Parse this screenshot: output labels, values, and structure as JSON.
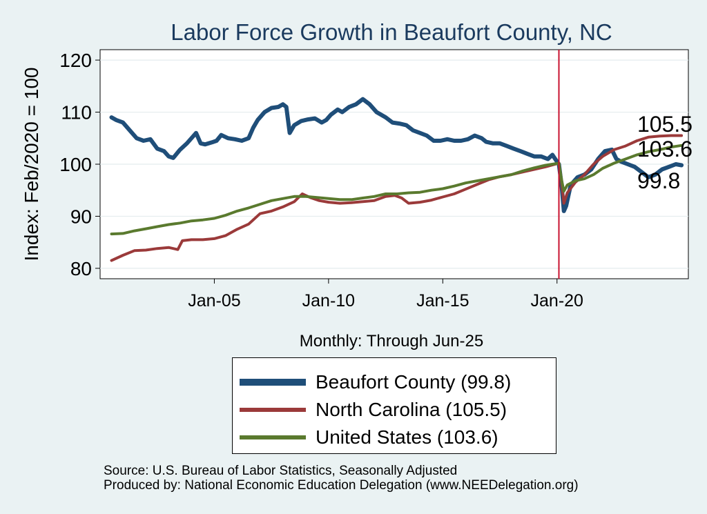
{
  "chart_data": {
    "type": "line",
    "title": "Labor Force Growth in Beaufort  County, NC",
    "ylabel": "Index: Feb/2020 = 100",
    "xlabel": "Monthly: Through Jun-25",
    "ylim": [
      78,
      122
    ],
    "xlim": [
      2000.0,
      2025.75
    ],
    "yticks": [
      80,
      90,
      100,
      110,
      120
    ],
    "xticks": [
      {
        "value": 2005.0,
        "label": "Jan-05"
      },
      {
        "value": 2010.0,
        "label": "Jan-10"
      },
      {
        "value": 2015.0,
        "label": "Jan-15"
      },
      {
        "value": 2020.0,
        "label": "Jan-20"
      }
    ],
    "reference_line": {
      "x": 2020.083,
      "color": "#c8102e"
    },
    "grid": true,
    "legend_position": "bottom",
    "series": [
      {
        "name": "Beaufort  County (99.8)",
        "color": "#1f4e79",
        "end_label": "99.8",
        "points": [
          [
            2000.5,
            109
          ],
          [
            2000.7,
            108.5
          ],
          [
            2001.0,
            108
          ],
          [
            2001.3,
            106.5
          ],
          [
            2001.6,
            105
          ],
          [
            2001.9,
            104.5
          ],
          [
            2002.2,
            104.8
          ],
          [
            2002.5,
            103
          ],
          [
            2002.8,
            102.5
          ],
          [
            2003.0,
            101.5
          ],
          [
            2003.2,
            101.2
          ],
          [
            2003.5,
            102.8
          ],
          [
            2003.8,
            104
          ],
          [
            2004.0,
            105
          ],
          [
            2004.2,
            106
          ],
          [
            2004.4,
            104
          ],
          [
            2004.6,
            103.8
          ],
          [
            2004.9,
            104.2
          ],
          [
            2005.1,
            104.5
          ],
          [
            2005.3,
            105.6
          ],
          [
            2005.6,
            105
          ],
          [
            2005.9,
            104.8
          ],
          [
            2006.2,
            104.5
          ],
          [
            2006.5,
            105
          ],
          [
            2006.7,
            107
          ],
          [
            2006.9,
            108.5
          ],
          [
            2007.2,
            110
          ],
          [
            2007.5,
            110.8
          ],
          [
            2007.8,
            111
          ],
          [
            2008.0,
            111.5
          ],
          [
            2008.15,
            111
          ],
          [
            2008.3,
            106
          ],
          [
            2008.5,
            107.5
          ],
          [
            2008.8,
            108.3
          ],
          [
            2009.1,
            108.6
          ],
          [
            2009.4,
            108.8
          ],
          [
            2009.7,
            108
          ],
          [
            2009.9,
            108.5
          ],
          [
            2010.1,
            109.5
          ],
          [
            2010.4,
            110.5
          ],
          [
            2010.6,
            110
          ],
          [
            2010.9,
            111
          ],
          [
            2011.2,
            111.5
          ],
          [
            2011.5,
            112.5
          ],
          [
            2011.8,
            111.5
          ],
          [
            2012.1,
            110
          ],
          [
            2012.5,
            109
          ],
          [
            2012.8,
            108
          ],
          [
            2013.1,
            107.8
          ],
          [
            2013.4,
            107.5
          ],
          [
            2013.7,
            106.5
          ],
          [
            2014.0,
            106
          ],
          [
            2014.3,
            105.5
          ],
          [
            2014.6,
            104.5
          ],
          [
            2014.9,
            104.5
          ],
          [
            2015.2,
            104.8
          ],
          [
            2015.5,
            104.5
          ],
          [
            2015.8,
            104.5
          ],
          [
            2016.1,
            104.8
          ],
          [
            2016.4,
            105.5
          ],
          [
            2016.7,
            105
          ],
          [
            2016.9,
            104.3
          ],
          [
            2017.2,
            104
          ],
          [
            2017.5,
            104
          ],
          [
            2017.8,
            103.5
          ],
          [
            2018.1,
            103
          ],
          [
            2018.4,
            102.5
          ],
          [
            2018.7,
            102
          ],
          [
            2019.0,
            101.5
          ],
          [
            2019.3,
            101.5
          ],
          [
            2019.6,
            101
          ],
          [
            2019.8,
            101.8
          ],
          [
            2020.0,
            100.5
          ],
          [
            2020.083,
            100
          ],
          [
            2020.2,
            96
          ],
          [
            2020.3,
            91
          ],
          [
            2020.4,
            92
          ],
          [
            2020.6,
            96
          ],
          [
            2020.9,
            97.5
          ],
          [
            2021.2,
            98
          ],
          [
            2021.5,
            99
          ],
          [
            2021.8,
            101
          ],
          [
            2022.1,
            102.5
          ],
          [
            2022.4,
            102.8
          ],
          [
            2022.6,
            101
          ],
          [
            2022.8,
            100.5
          ],
          [
            2023.1,
            100
          ],
          [
            2023.4,
            99.5
          ],
          [
            2023.7,
            98.5
          ],
          [
            2024.0,
            97.5
          ],
          [
            2024.3,
            98
          ],
          [
            2024.6,
            99
          ],
          [
            2024.9,
            99.5
          ],
          [
            2025.2,
            100
          ],
          [
            2025.45,
            99.8
          ]
        ]
      },
      {
        "name": "North Carolina (105.5)",
        "color": "#9b3a3a",
        "end_label": "105.5",
        "points": [
          [
            2000.5,
            81.5
          ],
          [
            2001.0,
            82.5
          ],
          [
            2001.5,
            83.4
          ],
          [
            2002.0,
            83.5
          ],
          [
            2002.5,
            83.8
          ],
          [
            2003.0,
            84
          ],
          [
            2003.4,
            83.6
          ],
          [
            2003.6,
            85.3
          ],
          [
            2004.0,
            85.5
          ],
          [
            2004.5,
            85.5
          ],
          [
            2005.0,
            85.7
          ],
          [
            2005.5,
            86.3
          ],
          [
            2006.0,
            87.5
          ],
          [
            2006.5,
            88.5
          ],
          [
            2007.0,
            90.5
          ],
          [
            2007.5,
            91
          ],
          [
            2008.0,
            91.8
          ],
          [
            2008.5,
            92.8
          ],
          [
            2008.85,
            94.3
          ],
          [
            2009.2,
            93.6
          ],
          [
            2009.6,
            93
          ],
          [
            2010.0,
            92.7
          ],
          [
            2010.5,
            92.5
          ],
          [
            2011.0,
            92.6
          ],
          [
            2011.5,
            92.8
          ],
          [
            2012.0,
            93
          ],
          [
            2012.5,
            93.8
          ],
          [
            2012.9,
            94
          ],
          [
            2013.2,
            93.5
          ],
          [
            2013.5,
            92.5
          ],
          [
            2014.0,
            92.7
          ],
          [
            2014.5,
            93.1
          ],
          [
            2015.0,
            93.7
          ],
          [
            2015.5,
            94.3
          ],
          [
            2016.0,
            95.2
          ],
          [
            2016.5,
            96.1
          ],
          [
            2017.0,
            97
          ],
          [
            2017.5,
            97.6
          ],
          [
            2018.0,
            98
          ],
          [
            2018.5,
            98.5
          ],
          [
            2019.0,
            99
          ],
          [
            2019.5,
            99.5
          ],
          [
            2020.083,
            100.2
          ],
          [
            2020.2,
            96.5
          ],
          [
            2020.3,
            92.5
          ],
          [
            2020.45,
            94.5
          ],
          [
            2020.8,
            96.5
          ],
          [
            2021.2,
            98
          ],
          [
            2021.6,
            100
          ],
          [
            2022.0,
            101.5
          ],
          [
            2022.5,
            102.8
          ],
          [
            2023.0,
            103.5
          ],
          [
            2023.5,
            104.5
          ],
          [
            2024.0,
            105.2
          ],
          [
            2024.5,
            105.4
          ],
          [
            2025.0,
            105.5
          ],
          [
            2025.45,
            105.5
          ]
        ]
      },
      {
        "name": "United States (103.6)",
        "color": "#5a7a2e",
        "end_label": "103.6",
        "points": [
          [
            2000.5,
            86.6
          ],
          [
            2001.0,
            86.7
          ],
          [
            2001.5,
            87.2
          ],
          [
            2002.0,
            87.6
          ],
          [
            2002.5,
            88.0
          ],
          [
            2003.0,
            88.4
          ],
          [
            2003.5,
            88.7
          ],
          [
            2004.0,
            89.1
          ],
          [
            2004.5,
            89.3
          ],
          [
            2005.0,
            89.6
          ],
          [
            2005.5,
            90.2
          ],
          [
            2006.0,
            91.0
          ],
          [
            2006.5,
            91.6
          ],
          [
            2007.0,
            92.3
          ],
          [
            2007.5,
            93.0
          ],
          [
            2008.0,
            93.4
          ],
          [
            2008.5,
            93.8
          ],
          [
            2009.0,
            93.8
          ],
          [
            2009.5,
            93.6
          ],
          [
            2010.0,
            93.4
          ],
          [
            2010.5,
            93.2
          ],
          [
            2011.0,
            93.2
          ],
          [
            2011.5,
            93.5
          ],
          [
            2012.0,
            93.8
          ],
          [
            2012.5,
            94.3
          ],
          [
            2013.0,
            94.3
          ],
          [
            2013.5,
            94.5
          ],
          [
            2014.0,
            94.6
          ],
          [
            2014.5,
            95.0
          ],
          [
            2015.0,
            95.3
          ],
          [
            2015.5,
            95.8
          ],
          [
            2016.0,
            96.4
          ],
          [
            2016.5,
            96.8
          ],
          [
            2017.0,
            97.2
          ],
          [
            2017.5,
            97.6
          ],
          [
            2018.0,
            98.0
          ],
          [
            2018.5,
            98.7
          ],
          [
            2019.0,
            99.3
          ],
          [
            2019.5,
            99.8
          ],
          [
            2020.083,
            100.2
          ],
          [
            2020.2,
            97
          ],
          [
            2020.3,
            94.8
          ],
          [
            2020.45,
            96.0
          ],
          [
            2020.8,
            96.8
          ],
          [
            2021.2,
            97.2
          ],
          [
            2021.6,
            98.0
          ],
          [
            2022.0,
            99.2
          ],
          [
            2022.5,
            100.2
          ],
          [
            2023.0,
            101.0
          ],
          [
            2023.5,
            101.8
          ],
          [
            2024.0,
            102.4
          ],
          [
            2024.5,
            102.8
          ],
          [
            2025.0,
            103.3
          ],
          [
            2025.45,
            103.6
          ]
        ]
      }
    ],
    "source_lines": [
      "Source: U.S. Bureau of Labor Statistics, Seasonally Adjusted",
      "Produced by: National Economic Education Delegation (www.NEEDelegation.org)"
    ]
  }
}
